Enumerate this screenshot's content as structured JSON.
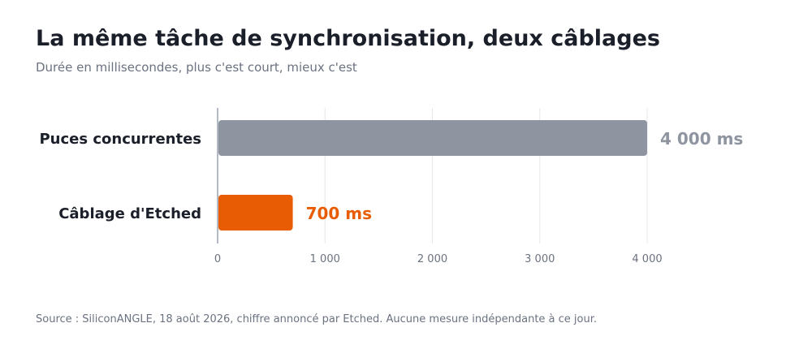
{
  "header": {
    "title": "La même tâche de synchronisation, deux câblages",
    "subtitle": "Durée en millisecondes, plus c'est court, mieux c'est"
  },
  "footer": {
    "source": "Source : SiliconANGLE, 18 août 2026, chiffre annoncé par Etched. Aucune mesure indépendante à ce jour."
  },
  "chart_data": {
    "type": "bar",
    "orientation": "horizontal",
    "title": "La même tâche de synchronisation, deux câblages",
    "subtitle": "Durée en millisecondes, plus c'est court, mieux c'est",
    "xlabel": "",
    "ylabel": "",
    "categories": [
      "Puces concurrentes",
      "Câblage d'Etched"
    ],
    "values": [
      4000,
      700
    ],
    "value_labels": [
      "4 000 ms",
      "700 ms"
    ],
    "colors": [
      "#8e95a1",
      "#e85d04"
    ],
    "xlim": [
      0,
      4000
    ],
    "ticks": [
      0,
      1000,
      2000,
      3000,
      4000
    ],
    "tick_labels": [
      "0",
      "1 000",
      "2 000",
      "3 000",
      "4 000"
    ],
    "grid": "vertical",
    "legend": "none"
  }
}
